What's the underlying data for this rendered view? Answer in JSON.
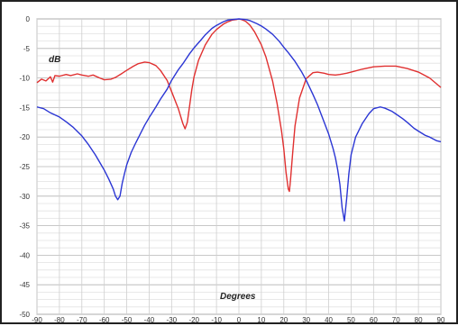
{
  "chart_data": {
    "type": "line",
    "title": "",
    "xlabel": "Degrees",
    "ylabel": "dB",
    "xlim": [
      -90,
      90
    ],
    "ylim": [
      -50,
      0
    ],
    "x_ticks": [
      -90,
      -80,
      -70,
      -60,
      -50,
      -40,
      -30,
      -20,
      -10,
      0,
      10,
      20,
      30,
      40,
      50,
      60,
      70,
      80,
      90
    ],
    "y_ticks": [
      0,
      -5,
      -10,
      -15,
      -20,
      -25,
      -30,
      -35,
      -40,
      -45,
      -50
    ],
    "x_tick_labels": [
      "-90",
      "-80",
      "-70",
      "-60",
      "-50",
      "-40",
      "-30",
      "-20",
      "-10",
      "0",
      "10",
      "20",
      "30",
      "40",
      "50",
      "60",
      "70",
      "80",
      "90"
    ],
    "y_tick_labels": [
      "0",
      "-5",
      "-10",
      "-15",
      "-20",
      "-25",
      "-30",
      "-35",
      "-40",
      "-45",
      "-50"
    ],
    "grid": true,
    "series": [
      {
        "color": "#e03030",
        "x": [
          -90,
          -88,
          -86,
          -84,
          -83,
          -82,
          -80,
          -77,
          -75,
          -72,
          -70,
          -67,
          -65,
          -62,
          -60,
          -57,
          -55,
          -52,
          -50,
          -47,
          -45,
          -42,
          -40,
          -37,
          -35,
          -32,
          -30,
          -27,
          -25,
          -24,
          -23,
          -22,
          -21,
          -20,
          -18,
          -15,
          -12,
          -10,
          -7,
          -5,
          -3,
          -1,
          0,
          1,
          3,
          5,
          7,
          10,
          12,
          15,
          17,
          19,
          20,
          21,
          22,
          22.5,
          23,
          24,
          25,
          27,
          30,
          33,
          35,
          38,
          40,
          43,
          45,
          48,
          50,
          55,
          60,
          65,
          70,
          75,
          80,
          85,
          90
        ],
        "y": [
          -10.8,
          -10.2,
          -10.5,
          -9.8,
          -10.7,
          -9.6,
          -9.7,
          -9.4,
          -9.6,
          -9.3,
          -9.5,
          -9.7,
          -9.5,
          -10.0,
          -10.3,
          -10.2,
          -9.9,
          -9.2,
          -8.7,
          -8.0,
          -7.6,
          -7.3,
          -7.4,
          -7.9,
          -8.7,
          -10.4,
          -12.3,
          -15.2,
          -17.7,
          -18.6,
          -17.5,
          -14.8,
          -12.0,
          -9.8,
          -7.0,
          -4.4,
          -2.6,
          -1.8,
          -0.9,
          -0.5,
          -0.2,
          -0.1,
          0.0,
          -0.1,
          -0.4,
          -1.1,
          -2.2,
          -4.4,
          -6.4,
          -10.5,
          -14.3,
          -19.0,
          -22.0,
          -26.0,
          -28.8,
          -29.2,
          -27.2,
          -22.5,
          -18.1,
          -13.4,
          -10.1,
          -9.1,
          -9.0,
          -9.2,
          -9.4,
          -9.5,
          -9.4,
          -9.2,
          -9.0,
          -8.5,
          -8.1,
          -8.0,
          -8.0,
          -8.4,
          -9.0,
          -10.0,
          -11.6
        ]
      },
      {
        "color": "#2b36d4",
        "x": [
          -90,
          -87,
          -84,
          -80,
          -77,
          -74,
          -70,
          -67,
          -64,
          -62,
          -60,
          -58,
          -56,
          -55,
          -54,
          -53,
          -52,
          -51,
          -50,
          -48,
          -46,
          -44,
          -42,
          -40,
          -37,
          -35,
          -32,
          -30,
          -27,
          -25,
          -22,
          -20,
          -17,
          -15,
          -12,
          -10,
          -7,
          -5,
          -3,
          0,
          3,
          5,
          8,
          10,
          12,
          15,
          18,
          20,
          22,
          25,
          28,
          30,
          33,
          35,
          38,
          40,
          42,
          43,
          44,
          45,
          46,
          47,
          48,
          49,
          50,
          52,
          55,
          58,
          60,
          63,
          65,
          68,
          70,
          73,
          75,
          78,
          80,
          83,
          85,
          88,
          90
        ],
        "y": [
          -14.9,
          -15.2,
          -15.9,
          -16.6,
          -17.4,
          -18.3,
          -19.8,
          -21.3,
          -23.0,
          -24.3,
          -25.6,
          -27.1,
          -28.8,
          -30.0,
          -30.6,
          -30.0,
          -27.8,
          -26.2,
          -24.7,
          -22.6,
          -21.0,
          -19.5,
          -18.0,
          -16.7,
          -14.9,
          -13.6,
          -11.9,
          -10.4,
          -8.6,
          -7.6,
          -5.9,
          -4.9,
          -3.6,
          -2.7,
          -1.6,
          -1.1,
          -0.5,
          -0.2,
          -0.1,
          0.0,
          -0.1,
          -0.3,
          -0.8,
          -1.2,
          -1.7,
          -2.6,
          -3.8,
          -4.8,
          -5.7,
          -7.2,
          -9.0,
          -10.4,
          -12.8,
          -14.5,
          -17.5,
          -19.5,
          -22.0,
          -23.5,
          -25.5,
          -28.0,
          -32.0,
          -34.2,
          -30.5,
          -26.2,
          -23.0,
          -20.0,
          -17.7,
          -16.0,
          -15.2,
          -14.9,
          -15.1,
          -15.6,
          -16.1,
          -16.9,
          -17.5,
          -18.5,
          -19.0,
          -19.7,
          -20.0,
          -20.6,
          -20.8
        ]
      }
    ]
  }
}
